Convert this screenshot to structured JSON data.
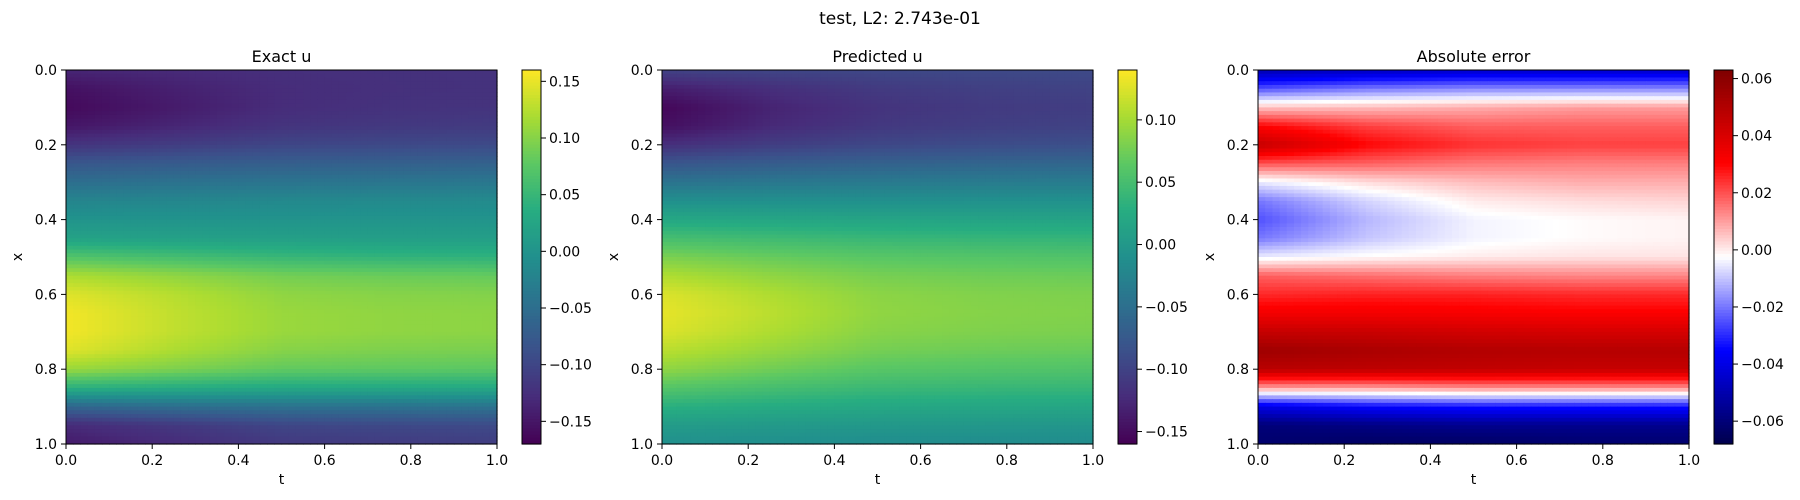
{
  "figure": {
    "suptitle": "test, L2: 2.743e-01"
  },
  "chart_data": [
    {
      "type": "heatmap",
      "title": "Exact u",
      "xlabel": "t",
      "ylabel": "x",
      "xlim": [
        0.0,
        1.0
      ],
      "ylim": [
        1.0,
        0.0
      ],
      "y_inverted": true,
      "xticks": [
        "0.0",
        "0.2",
        "0.4",
        "0.6",
        "0.8",
        "1.0"
      ],
      "yticks": [
        "0.0",
        "0.2",
        "0.4",
        "0.6",
        "0.8",
        "1.0"
      ],
      "colormap": "viridis",
      "clim": [
        -0.17,
        0.16
      ],
      "colorbar_ticks": [
        {
          "value": 0.15,
          "label": "0.15"
        },
        {
          "value": 0.1,
          "label": "0.10"
        },
        {
          "value": 0.05,
          "label": "0.05"
        },
        {
          "value": 0.0,
          "label": "0.00"
        },
        {
          "value": -0.05,
          "label": "−0.05"
        },
        {
          "value": -0.1,
          "label": "−0.10"
        },
        {
          "value": -0.15,
          "label": "−0.15"
        }
      ],
      "x": [
        0.0,
        0.25,
        0.5,
        0.75,
        1.0
      ],
      "y": [
        0.0,
        0.05,
        0.1,
        0.15,
        0.2,
        0.25,
        0.3,
        0.35,
        0.4,
        0.45,
        0.5,
        0.55,
        0.6,
        0.65,
        0.7,
        0.75,
        0.8,
        0.85,
        0.9,
        0.95,
        1.0
      ],
      "values": [
        [
          -0.135,
          -0.13,
          -0.125,
          -0.123,
          -0.122
        ],
        [
          -0.155,
          -0.14,
          -0.128,
          -0.124,
          -0.122
        ],
        [
          -0.162,
          -0.145,
          -0.128,
          -0.122,
          -0.12
        ],
        [
          -0.15,
          -0.135,
          -0.12,
          -0.115,
          -0.112
        ],
        [
          -0.12,
          -0.11,
          -0.1,
          -0.097,
          -0.095
        ],
        [
          -0.08,
          -0.075,
          -0.07,
          -0.068,
          -0.066
        ],
        [
          -0.05,
          -0.045,
          -0.042,
          -0.04,
          -0.038
        ],
        [
          -0.02,
          -0.018,
          -0.015,
          -0.013,
          -0.012
        ],
        [
          0.0,
          0.0,
          0.0,
          0.0,
          0.0
        ],
        [
          0.02,
          0.018,
          0.016,
          0.015,
          0.015
        ],
        [
          0.07,
          0.06,
          0.05,
          0.045,
          0.043
        ],
        [
          0.12,
          0.105,
          0.09,
          0.085,
          0.082
        ],
        [
          0.145,
          0.125,
          0.105,
          0.1,
          0.098
        ],
        [
          0.155,
          0.13,
          0.11,
          0.105,
          0.103
        ],
        [
          0.155,
          0.13,
          0.11,
          0.105,
          0.103
        ],
        [
          0.145,
          0.12,
          0.1,
          0.095,
          0.093
        ],
        [
          0.11,
          0.095,
          0.08,
          0.078,
          0.076
        ],
        [
          0.04,
          0.035,
          0.03,
          0.03,
          0.03
        ],
        [
          -0.06,
          -0.05,
          -0.045,
          -0.044,
          -0.043
        ],
        [
          -0.13,
          -0.115,
          -0.1,
          -0.097,
          -0.095
        ],
        [
          -0.145,
          -0.13,
          -0.115,
          -0.112,
          -0.11
        ]
      ]
    },
    {
      "type": "heatmap",
      "title": "Predicted u",
      "xlabel": "t",
      "ylabel": "x",
      "xlim": [
        0.0,
        1.0
      ],
      "ylim": [
        1.0,
        0.0
      ],
      "y_inverted": true,
      "xticks": [
        "0.0",
        "0.2",
        "0.4",
        "0.6",
        "0.8",
        "1.0"
      ],
      "yticks": [
        "0.0",
        "0.2",
        "0.4",
        "0.6",
        "0.8",
        "1.0"
      ],
      "colormap": "viridis",
      "clim": [
        -0.16,
        0.14
      ],
      "colorbar_ticks": [
        {
          "value": 0.1,
          "label": "0.10"
        },
        {
          "value": 0.05,
          "label": "0.05"
        },
        {
          "value": 0.0,
          "label": "0.00"
        },
        {
          "value": -0.05,
          "label": "−0.05"
        },
        {
          "value": -0.1,
          "label": "−0.10"
        },
        {
          "value": -0.15,
          "label": "−0.15"
        }
      ],
      "x": [
        0.0,
        0.25,
        0.5,
        0.75,
        1.0
      ],
      "y": [
        0.0,
        0.05,
        0.1,
        0.15,
        0.2,
        0.25,
        0.3,
        0.35,
        0.4,
        0.45,
        0.5,
        0.55,
        0.6,
        0.65,
        0.7,
        0.75,
        0.8,
        0.85,
        0.9,
        0.95,
        1.0
      ],
      "values": [
        [
          -0.1,
          -0.097,
          -0.095,
          -0.093,
          -0.092
        ],
        [
          -0.135,
          -0.12,
          -0.108,
          -0.103,
          -0.1
        ],
        [
          -0.155,
          -0.13,
          -0.115,
          -0.108,
          -0.105
        ],
        [
          -0.148,
          -0.125,
          -0.11,
          -0.104,
          -0.1
        ],
        [
          -0.12,
          -0.105,
          -0.095,
          -0.09,
          -0.087
        ],
        [
          -0.08,
          -0.072,
          -0.066,
          -0.062,
          -0.06
        ],
        [
          -0.045,
          -0.04,
          -0.037,
          -0.035,
          -0.034
        ],
        [
          -0.01,
          -0.01,
          -0.01,
          -0.009,
          -0.009
        ],
        [
          0.02,
          0.018,
          0.016,
          0.015,
          0.015
        ],
        [
          0.05,
          0.045,
          0.04,
          0.038,
          0.037
        ],
        [
          0.08,
          0.07,
          0.062,
          0.059,
          0.057
        ],
        [
          0.105,
          0.09,
          0.078,
          0.074,
          0.072
        ],
        [
          0.125,
          0.105,
          0.088,
          0.083,
          0.081
        ],
        [
          0.13,
          0.11,
          0.09,
          0.085,
          0.083
        ],
        [
          0.125,
          0.105,
          0.086,
          0.082,
          0.08
        ],
        [
          0.11,
          0.093,
          0.077,
          0.073,
          0.071
        ],
        [
          0.09,
          0.075,
          0.062,
          0.059,
          0.057
        ],
        [
          0.06,
          0.05,
          0.042,
          0.04,
          0.039
        ],
        [
          0.03,
          0.025,
          0.02,
          0.019,
          0.018
        ],
        [
          0.005,
          0.002,
          0.0,
          -0.001,
          -0.002
        ],
        [
          -0.01,
          -0.012,
          -0.014,
          -0.015,
          -0.015
        ]
      ]
    },
    {
      "type": "heatmap",
      "title": "Absolute error",
      "xlabel": "t",
      "ylabel": "x",
      "xlim": [
        0.0,
        1.0
      ],
      "ylim": [
        1.0,
        0.0
      ],
      "y_inverted": true,
      "xticks": [
        "0.0",
        "0.2",
        "0.4",
        "0.6",
        "0.8",
        "1.0"
      ],
      "yticks": [
        "0.0",
        "0.2",
        "0.4",
        "0.6",
        "0.8",
        "1.0"
      ],
      "colormap": "seismic",
      "clim": [
        -0.068,
        0.063
      ],
      "colorbar_ticks": [
        {
          "value": 0.06,
          "label": "0.06"
        },
        {
          "value": 0.04,
          "label": "0.04"
        },
        {
          "value": 0.02,
          "label": "0.02"
        },
        {
          "value": 0.0,
          "label": "0.00"
        },
        {
          "value": -0.02,
          "label": "−0.02"
        },
        {
          "value": -0.04,
          "label": "−0.04"
        },
        {
          "value": -0.06,
          "label": "−0.06"
        }
      ],
      "x": [
        0.0,
        0.25,
        0.5,
        0.75,
        1.0
      ],
      "y": [
        0.0,
        0.05,
        0.1,
        0.15,
        0.2,
        0.25,
        0.3,
        0.35,
        0.4,
        0.45,
        0.5,
        0.55,
        0.6,
        0.65,
        0.7,
        0.75,
        0.8,
        0.85,
        0.9,
        0.95,
        1.0
      ],
      "values": [
        [
          -0.05,
          -0.047,
          -0.045,
          -0.045,
          -0.045
        ],
        [
          -0.025,
          -0.02,
          -0.018,
          -0.018,
          -0.018
        ],
        [
          0.005,
          0.006,
          0.008,
          0.01,
          0.01
        ],
        [
          0.03,
          0.022,
          0.018,
          0.018,
          0.018
        ],
        [
          0.045,
          0.03,
          0.024,
          0.022,
          0.022
        ],
        [
          0.02,
          0.018,
          0.015,
          0.014,
          0.014
        ],
        [
          -0.005,
          0.002,
          0.006,
          0.008,
          0.008
        ],
        [
          -0.02,
          -0.008,
          0.0,
          0.002,
          0.003
        ],
        [
          -0.025,
          -0.012,
          -0.004,
          -0.002,
          -0.001
        ],
        [
          -0.02,
          -0.01,
          -0.004,
          -0.002,
          -0.001
        ],
        [
          -0.005,
          -0.002,
          0.0,
          0.001,
          0.001
        ],
        [
          0.018,
          0.016,
          0.014,
          0.013,
          0.013
        ],
        [
          0.025,
          0.026,
          0.026,
          0.025,
          0.025
        ],
        [
          0.033,
          0.033,
          0.032,
          0.031,
          0.031
        ],
        [
          0.045,
          0.044,
          0.042,
          0.041,
          0.041
        ],
        [
          0.055,
          0.052,
          0.05,
          0.049,
          0.049
        ],
        [
          0.048,
          0.047,
          0.046,
          0.045,
          0.045
        ],
        [
          0.01,
          0.01,
          0.012,
          0.012,
          0.012
        ],
        [
          -0.04,
          -0.035,
          -0.033,
          -0.033,
          -0.033
        ],
        [
          -0.06,
          -0.058,
          -0.056,
          -0.056,
          -0.056
        ],
        [
          -0.062,
          -0.064,
          -0.064,
          -0.062,
          -0.062
        ]
      ]
    }
  ]
}
